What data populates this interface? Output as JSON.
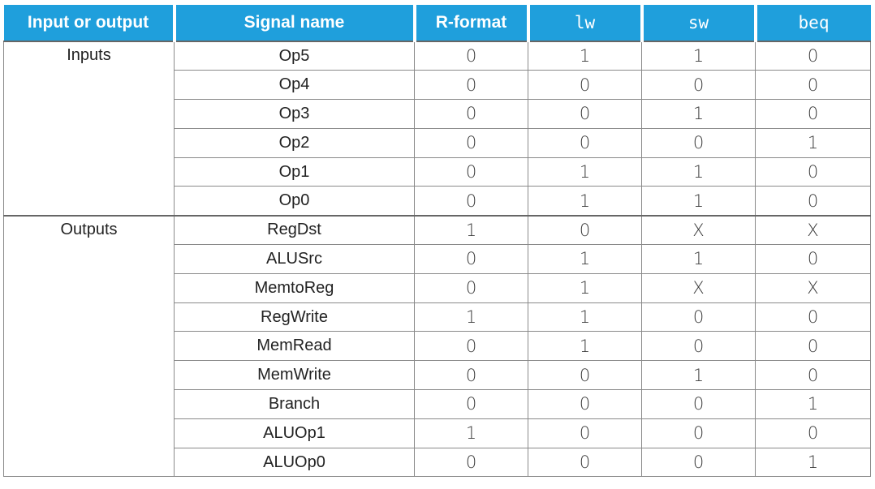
{
  "table": {
    "headers": [
      "Input or output",
      "Signal name",
      "R-format",
      "lw",
      "sw",
      "beq"
    ],
    "mono_headers": [
      3,
      4,
      5
    ],
    "groups": [
      {
        "label": "Inputs",
        "rows": [
          {
            "signal": "Op5",
            "values": [
              "0",
              "1",
              "1",
              "0"
            ]
          },
          {
            "signal": "Op4",
            "values": [
              "0",
              "0",
              "0",
              "0"
            ]
          },
          {
            "signal": "Op3",
            "values": [
              "0",
              "0",
              "1",
              "0"
            ]
          },
          {
            "signal": "Op2",
            "values": [
              "0",
              "0",
              "0",
              "1"
            ]
          },
          {
            "signal": "Op1",
            "values": [
              "0",
              "1",
              "1",
              "0"
            ]
          },
          {
            "signal": "Op0",
            "values": [
              "0",
              "1",
              "1",
              "0"
            ]
          }
        ]
      },
      {
        "label": "Outputs",
        "rows": [
          {
            "signal": "RegDst",
            "values": [
              "1",
              "0",
              "X",
              "X"
            ]
          },
          {
            "signal": "ALUSrc",
            "values": [
              "0",
              "1",
              "1",
              "0"
            ]
          },
          {
            "signal": "MemtoReg",
            "values": [
              "0",
              "1",
              "X",
              "X"
            ]
          },
          {
            "signal": "RegWrite",
            "values": [
              "1",
              "1",
              "0",
              "0"
            ]
          },
          {
            "signal": "MemRead",
            "values": [
              "0",
              "1",
              "0",
              "0"
            ]
          },
          {
            "signal": "MemWrite",
            "values": [
              "0",
              "0",
              "1",
              "0"
            ]
          },
          {
            "signal": "Branch",
            "values": [
              "0",
              "0",
              "0",
              "1"
            ]
          },
          {
            "signal": "ALUOp1",
            "values": [
              "1",
              "0",
              "0",
              "0"
            ]
          },
          {
            "signal": "ALUOp0",
            "values": [
              "0",
              "0",
              "0",
              "1"
            ]
          }
        ]
      }
    ]
  }
}
